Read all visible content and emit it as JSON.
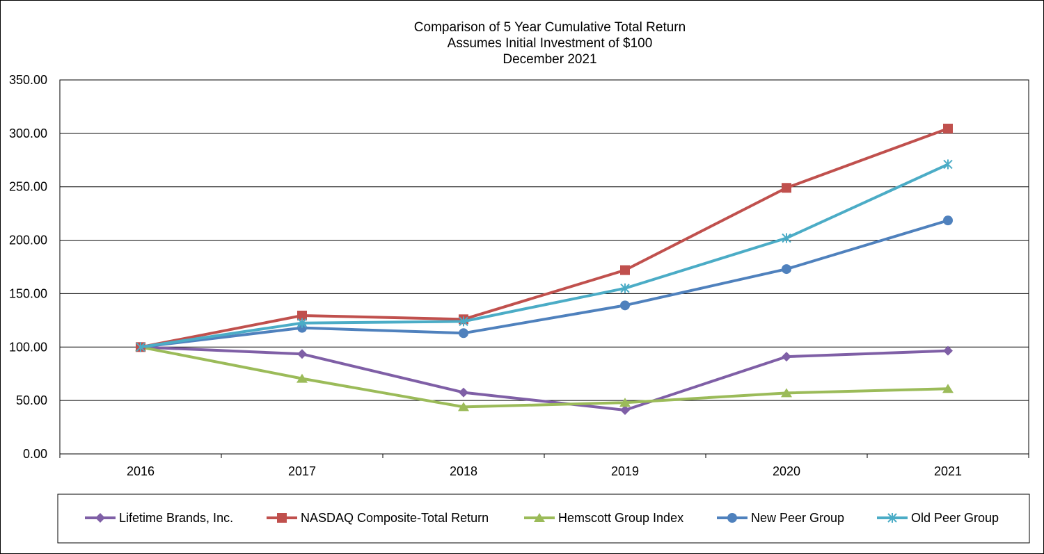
{
  "chart_data": {
    "type": "line",
    "title": [
      "Comparison of 5 Year Cumulative Total Return",
      "Assumes Initial Investment of $100",
      "December 2021"
    ],
    "categories": [
      "2016",
      "2017",
      "2018",
      "2019",
      "2020",
      "2021"
    ],
    "y_ticks": [
      "0.00",
      "50.00",
      "100.00",
      "150.00",
      "200.00",
      "250.00",
      "300.00",
      "350.00"
    ],
    "ylim": [
      0,
      350
    ],
    "grid": "horizontal",
    "legend_position": "bottom",
    "series": [
      {
        "name": "Lifetime Brands, Inc.",
        "marker": "diamond",
        "color": "#7f5fa6",
        "values": [
          100,
          93.5,
          57.5,
          41,
          91,
          96.5
        ]
      },
      {
        "name": "NASDAQ Composite-Total Return",
        "marker": "square",
        "color": "#c0504d",
        "values": [
          100,
          129.5,
          126,
          172,
          249,
          304.5
        ]
      },
      {
        "name": "Hemscott Group Index",
        "marker": "triangle",
        "color": "#9bbb59",
        "values": [
          100,
          70.5,
          44,
          48,
          57,
          61
        ]
      },
      {
        "name": "New Peer Group",
        "marker": "circle",
        "color": "#4f81bd",
        "values": [
          100,
          118,
          113,
          139,
          173,
          218.5
        ]
      },
      {
        "name": "Old Peer Group",
        "marker": "asterisk",
        "color": "#4bacc6",
        "values": [
          100,
          122.5,
          124,
          155,
          202,
          271
        ]
      }
    ]
  }
}
